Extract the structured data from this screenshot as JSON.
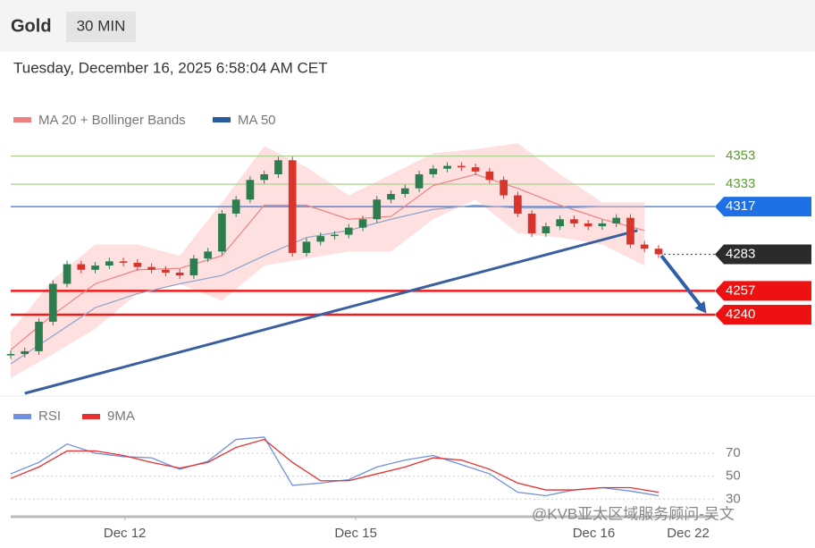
{
  "header": {
    "title": "Gold",
    "timeframe": "30 MIN",
    "timestamp": "Tuesday, December 16, 2025 6:58:04 AM CET"
  },
  "watermark": "@KVB亚太区域服务顾问-吴文",
  "chart_data": [
    {
      "type": "candlestick",
      "xlim": [
        0,
        50
      ],
      "ylim": [
        4184,
        4375
      ],
      "up_color": "#2e7d4f",
      "down_color": "#d9342b",
      "values": [
        4212,
        4214,
        4235,
        4262,
        4276,
        4272,
        4275,
        4278,
        4277,
        4274,
        4272,
        4270,
        4268,
        4280,
        4285,
        4312,
        4322,
        4336,
        4340,
        4350,
        4284,
        4292,
        4296,
        4297,
        4302,
        4308,
        4322,
        4326,
        4330,
        4340,
        4344,
        4346,
        4345,
        4342,
        4336,
        4325,
        4312,
        4298,
        4303,
        4308,
        4305,
        4303,
        4305,
        4309,
        4290,
        4287,
        4283
      ],
      "series": [
        {
          "name": "MA 20 + Bollinger Bands",
          "color": "#f08080",
          "band_color": "#fdd5d5",
          "x": [
            0,
            3,
            6,
            9,
            12,
            15,
            18,
            21,
            24,
            27,
            30,
            33,
            36,
            39,
            42,
            45
          ],
          "values": [
            4215,
            4240,
            4262,
            4272,
            4273,
            4282,
            4318,
            4318,
            4308,
            4310,
            4332,
            4340,
            4330,
            4318,
            4308,
            4300
          ],
          "upper": [
            4228,
            4265,
            4290,
            4290,
            4282,
            4320,
            4360,
            4345,
            4325,
            4340,
            4355,
            4358,
            4362,
            4340,
            4320,
            4320
          ],
          "lower": [
            4195,
            4212,
            4230,
            4255,
            4262,
            4250,
            4275,
            4280,
            4285,
            4285,
            4308,
            4322,
            4298,
            4295,
            4290,
            4275
          ]
        },
        {
          "name": "MA 50",
          "color": "#2c5aa0",
          "line_color": "#8fa3c8",
          "x": [
            0,
            3,
            6,
            9,
            12,
            15,
            18,
            21,
            24,
            27,
            30,
            33,
            36,
            39,
            42,
            45
          ],
          "values": [
            4205,
            4225,
            4245,
            4255,
            4262,
            4268,
            4282,
            4295,
            4300,
            4308,
            4315,
            4318,
            4316,
            4316,
            4317,
            4317
          ]
        }
      ],
      "levels": [
        {
          "value": 4353,
          "color": "#a8d08d",
          "label_color": "#5aa02c",
          "badge": false,
          "style": "thin"
        },
        {
          "value": 4333,
          "color": "#a8d08d",
          "label_color": "#5aa02c",
          "badge": false,
          "style": "thin"
        },
        {
          "value": 4317,
          "color": "#3b6fd6",
          "label_color": "#1f6fe5",
          "badge": true,
          "style": "thin"
        },
        {
          "value": 4283,
          "color": "#555555",
          "label_color": "#2b2b2b",
          "badge": true,
          "style": "dotted"
        },
        {
          "value": 4257,
          "color": "#ee1c1c",
          "label_color": "#ee1111",
          "badge": true,
          "style": "thick"
        },
        {
          "value": 4240,
          "color": "#ee1c1c",
          "label_color": "#ee1111",
          "badge": true,
          "style": "thick"
        }
      ],
      "trendline": {
        "color": "#3a5fa0",
        "x": [
          1,
          44.5
        ],
        "values": [
          4184,
          4300
        ]
      },
      "arrow": {
        "color": "#2f5fa8",
        "x": [
          46.2,
          49.4
        ],
        "values": [
          4282,
          4241
        ]
      }
    },
    {
      "type": "line",
      "xlim": [
        0,
        50
      ],
      "ylim": [
        17,
        91
      ],
      "yticks": [
        30,
        50,
        70
      ],
      "xticks": [
        {
          "value": 8.1,
          "label": "Dec 12"
        },
        {
          "value": 24.5,
          "label": "Dec 15"
        },
        {
          "value": 41.4,
          "label": "Dec 16"
        },
        {
          "value": 48.1,
          "label": "Dec 22"
        }
      ],
      "series": [
        {
          "name": "RSI",
          "color": "#7090e0",
          "x": [
            0,
            2,
            4,
            6,
            8,
            10,
            12,
            14,
            16,
            18,
            20,
            22,
            24,
            26,
            28,
            30,
            32,
            34,
            36,
            38,
            40,
            42,
            44,
            46
          ],
          "values": [
            52,
            62,
            78,
            70,
            67,
            66,
            56,
            63,
            82,
            84,
            42,
            44,
            47,
            58,
            64,
            68,
            60,
            52,
            36,
            33,
            38,
            40,
            37,
            33
          ]
        },
        {
          "name": "9MA",
          "color": "#e83030",
          "x": [
            0,
            2,
            4,
            6,
            8,
            10,
            12,
            14,
            16,
            18,
            20,
            22,
            24,
            26,
            28,
            30,
            32,
            34,
            36,
            38,
            40,
            42,
            44,
            46
          ],
          "values": [
            48,
            58,
            72,
            72,
            68,
            62,
            57,
            62,
            75,
            82,
            62,
            46,
            46,
            52,
            58,
            66,
            64,
            56,
            44,
            38,
            38,
            40,
            40,
            36
          ]
        }
      ]
    }
  ]
}
